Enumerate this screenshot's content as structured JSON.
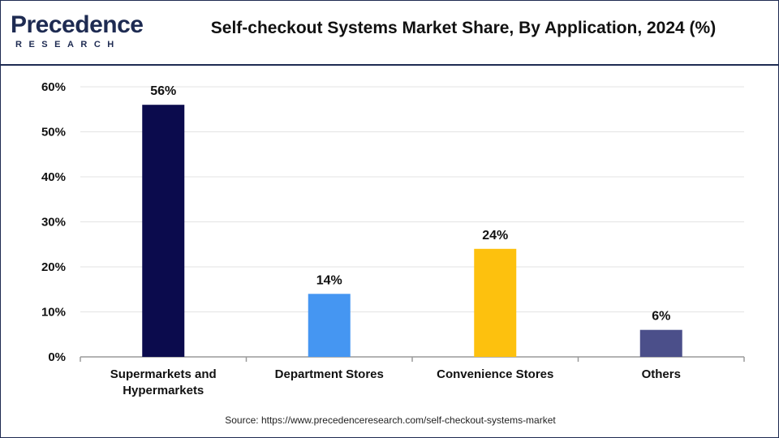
{
  "header": {
    "logo_text_top": "Precedence",
    "logo_text_bottom": "RESEARCH",
    "title": "Self-checkout Systems Market Share, By Application, 2024 (%)"
  },
  "source": "Source: https://www.precedenceresearch.com/self-checkout-systems-market",
  "chart_data": {
    "type": "bar",
    "title": "Self-checkout Systems Market Share, By Application, 2024 (%)",
    "xlabel": "",
    "ylabel": "",
    "ylim": [
      0,
      60
    ],
    "yticks": [
      0,
      10,
      20,
      30,
      40,
      50,
      60
    ],
    "ytick_labels": [
      "0%",
      "10%",
      "20%",
      "30%",
      "40%",
      "50%",
      "60%"
    ],
    "grid": true,
    "legend": "none",
    "categories": [
      [
        "Supermarkets and",
        "Hypermarkets"
      ],
      [
        "Department Stores"
      ],
      [
        "Convenience Stores"
      ],
      [
        "Others"
      ]
    ],
    "values": [
      56,
      14,
      24,
      6
    ],
    "data_labels": [
      "56%",
      "14%",
      "24%",
      "6%"
    ],
    "colors": [
      "#0b0b4d",
      "#4596f2",
      "#fdc10e",
      "#4b4f8a"
    ]
  }
}
